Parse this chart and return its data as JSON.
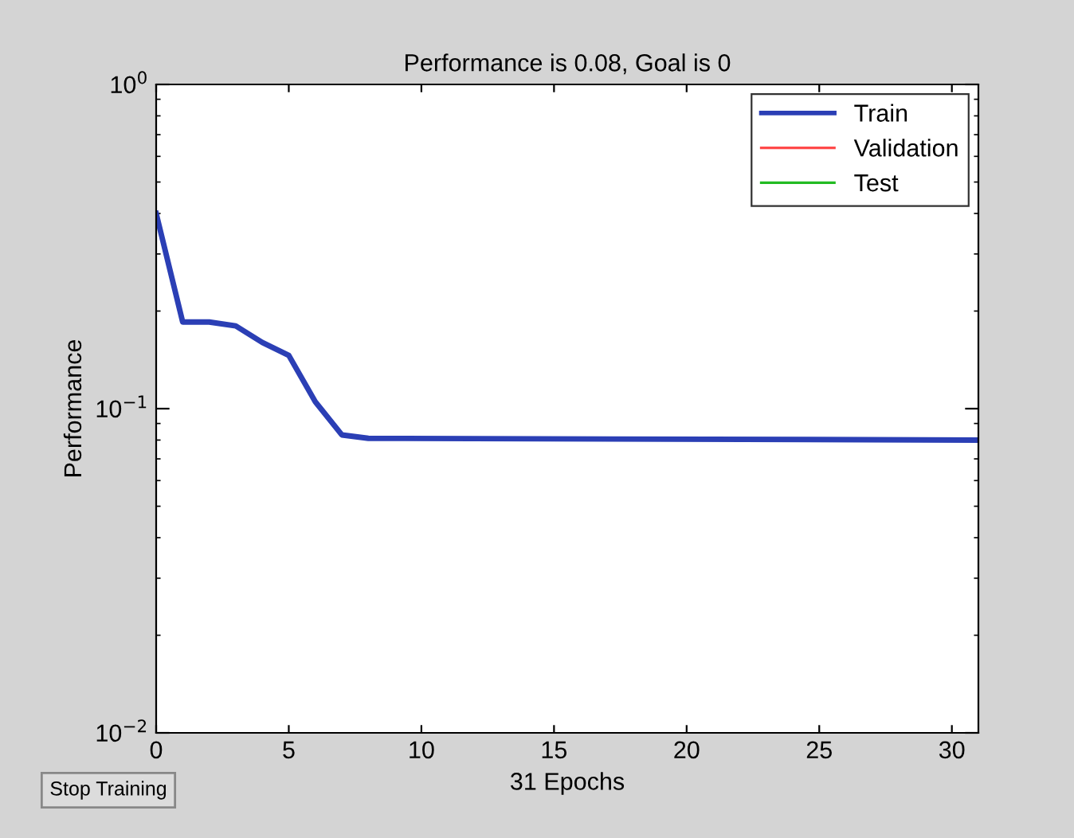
{
  "chart_data": {
    "type": "line",
    "title": "Performance is 0.08, Goal is 0",
    "xlabel": "31 Epochs",
    "ylabel": "Performance",
    "log": "y",
    "xlim": [
      0,
      31
    ],
    "ylim": [
      0.01,
      1
    ],
    "xticks": [
      0,
      5,
      10,
      15,
      20,
      25,
      30
    ],
    "yticks": [
      {
        "value": 1,
        "label": "10$^{0}$"
      },
      {
        "value": 0.1,
        "label": "10$^{−1}$"
      },
      {
        "value": 0.01,
        "label": "10$^{−2}$"
      }
    ],
    "grid": false,
    "legend": "top right",
    "marker": "none",
    "line_style": "solid",
    "series": [
      {
        "name": "Train",
        "color": "#2b3fb5",
        "x": [
          0,
          1,
          2,
          3,
          4,
          5,
          6,
          7,
          8,
          31
        ],
        "values": [
          0.4,
          0.185,
          0.185,
          0.18,
          0.16,
          0.146,
          0.105,
          0.083,
          0.081,
          0.08
        ]
      },
      {
        "name": "Validation",
        "color": "#ff4a4a"
      },
      {
        "name": "Test",
        "color": "#22bb22"
      }
    ],
    "annotations": [
      "Stop Training"
    ]
  }
}
